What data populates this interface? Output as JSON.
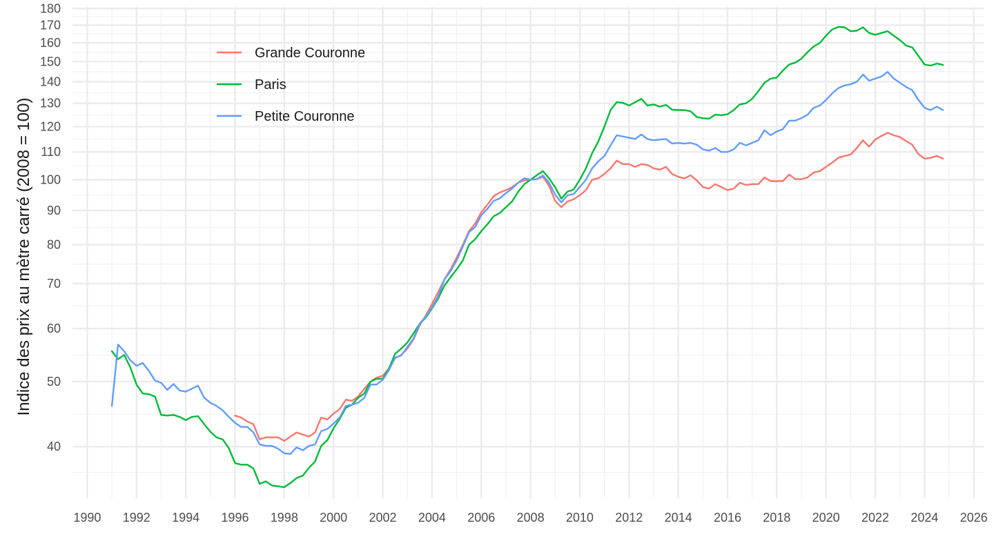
{
  "chart_data": {
    "type": "line",
    "ylabel": "Indice des prix au mètre carré (2008 = 100)",
    "xlabel": "",
    "title": "",
    "y_scale": "log",
    "xlim": [
      1989.4,
      2026.4
    ],
    "ylim": [
      33.5,
      181
    ],
    "x_ticks": [
      1990,
      1992,
      1994,
      1996,
      1998,
      2000,
      2002,
      2004,
      2006,
      2008,
      2010,
      2012,
      2014,
      2016,
      2018,
      2020,
      2022,
      2024,
      2026
    ],
    "y_ticks": [
      40,
      50,
      60,
      70,
      80,
      90,
      100,
      110,
      120,
      130,
      140,
      150,
      160,
      170,
      180
    ],
    "grid": true,
    "legend_position": "top-left",
    "series": [
      {
        "name": "Grande Couronne",
        "color": "#F8766D",
        "x": [
          1996.0,
          1996.25,
          1996.5,
          1996.75,
          1997.0,
          1997.25,
          1997.5,
          1997.75,
          1998.0,
          1998.25,
          1998.5,
          1998.75,
          1999.0,
          1999.25,
          1999.5,
          1999.75,
          2000.0,
          2000.25,
          2000.5,
          2000.75,
          2001.0,
          2001.25,
          2001.5,
          2001.75,
          2002.0,
          2002.25,
          2002.5,
          2002.75,
          2003.0,
          2003.25,
          2003.5,
          2003.75,
          2004.0,
          2004.25,
          2004.5,
          2004.75,
          2005.0,
          2005.25,
          2005.5,
          2005.75,
          2006.0,
          2006.25,
          2006.5,
          2006.75,
          2007.0,
          2007.25,
          2007.5,
          2007.75,
          2008.0,
          2008.25,
          2008.5,
          2008.75,
          2009.0,
          2009.25,
          2009.5,
          2009.75,
          2010.0,
          2010.25,
          2010.5,
          2010.75,
          2011.0,
          2011.25,
          2011.5,
          2011.75,
          2012.0,
          2012.25,
          2012.5,
          2012.75,
          2013.0,
          2013.25,
          2013.5,
          2013.75,
          2014.0,
          2014.25,
          2014.5,
          2014.75,
          2015.0,
          2015.25,
          2015.5,
          2015.75,
          2016.0,
          2016.25,
          2016.5,
          2016.75,
          2017.0,
          2017.25,
          2017.5,
          2017.75,
          2018.0,
          2018.25,
          2018.5,
          2018.75,
          2019.0,
          2019.25,
          2019.5,
          2019.75,
          2020.0,
          2020.25,
          2020.5,
          2020.75,
          2021.0,
          2021.25,
          2021.5,
          2021.75,
          2022.0,
          2022.25,
          2022.5,
          2022.75,
          2023.0,
          2023.25,
          2023.5,
          2023.75,
          2024.0,
          2024.25,
          2024.5,
          2024.75
        ],
        "y": [
          44.5,
          44.2,
          43.6,
          43.2,
          41.0,
          41.3,
          41.3,
          41.3,
          40.8,
          41.4,
          42.0,
          41.7,
          41.4,
          42.0,
          44.2,
          43.9,
          44.8,
          45.5,
          47.0,
          46.8,
          47.5,
          48.8,
          50.0,
          50.7,
          51.0,
          52.3,
          54.2,
          54.8,
          56.0,
          57.8,
          60.6,
          62.8,
          65.3,
          68.0,
          71.0,
          73.5,
          76.5,
          80.0,
          83.8,
          86.0,
          89.4,
          91.8,
          94.5,
          95.7,
          96.5,
          97.5,
          99.0,
          99.8,
          100.0,
          100.2,
          101.0,
          98.0,
          93.0,
          91.0,
          92.8,
          93.5,
          94.8,
          96.5,
          100.0,
          100.5,
          102.0,
          104.0,
          106.8,
          105.5,
          105.5,
          104.5,
          105.5,
          105.2,
          104.0,
          103.5,
          104.5,
          102.0,
          101.0,
          100.5,
          101.5,
          99.8,
          97.5,
          97.0,
          98.5,
          97.5,
          96.5,
          97.0,
          99.0,
          98.2,
          98.5,
          98.5,
          100.8,
          99.5,
          99.5,
          99.5,
          101.8,
          100.2,
          100.2,
          100.8,
          102.5,
          103.0,
          104.5,
          106.0,
          107.8,
          108.5,
          109.0,
          111.5,
          114.5,
          112.0,
          114.8,
          116.2,
          117.5,
          116.5,
          115.8,
          114.2,
          112.8,
          109.2,
          107.5,
          107.8,
          108.5,
          107.5
        ]
      },
      {
        "name": "Paris",
        "color": "#00BA38",
        "x": [
          1991.0,
          1991.25,
          1991.5,
          1991.75,
          1992.0,
          1992.25,
          1992.5,
          1992.75,
          1993.0,
          1993.25,
          1993.5,
          1993.75,
          1994.0,
          1994.25,
          1994.5,
          1994.75,
          1995.0,
          1995.25,
          1995.5,
          1995.75,
          1996.0,
          1996.25,
          1996.5,
          1996.75,
          1997.0,
          1997.25,
          1997.5,
          1997.75,
          1998.0,
          1998.25,
          1998.5,
          1998.75,
          1999.0,
          1999.25,
          1999.5,
          1999.75,
          2000.0,
          2000.25,
          2000.5,
          2000.75,
          2001.0,
          2001.25,
          2001.5,
          2001.75,
          2002.0,
          2002.25,
          2002.5,
          2002.75,
          2003.0,
          2003.25,
          2003.5,
          2003.75,
          2004.0,
          2004.25,
          2004.5,
          2004.75,
          2005.0,
          2005.25,
          2005.5,
          2005.75,
          2006.0,
          2006.25,
          2006.5,
          2006.75,
          2007.0,
          2007.25,
          2007.5,
          2007.75,
          2008.0,
          2008.25,
          2008.5,
          2008.75,
          2009.0,
          2009.25,
          2009.5,
          2009.75,
          2010.0,
          2010.25,
          2010.5,
          2010.75,
          2011.0,
          2011.25,
          2011.5,
          2011.75,
          2012.0,
          2012.25,
          2012.5,
          2012.75,
          2013.0,
          2013.25,
          2013.5,
          2013.75,
          2014.0,
          2014.25,
          2014.5,
          2014.75,
          2015.0,
          2015.25,
          2015.5,
          2015.75,
          2016.0,
          2016.25,
          2016.5,
          2016.75,
          2017.0,
          2017.25,
          2017.5,
          2017.75,
          2018.0,
          2018.25,
          2018.5,
          2018.75,
          2019.0,
          2019.25,
          2019.5,
          2019.75,
          2020.0,
          2020.25,
          2020.5,
          2020.75,
          2021.0,
          2021.25,
          2021.5,
          2021.75,
          2022.0,
          2022.25,
          2022.5,
          2022.75,
          2023.0,
          2023.25,
          2023.5,
          2023.75,
          2024.0,
          2024.25,
          2024.5,
          2024.75
        ],
        "y": [
          55.5,
          54.0,
          54.8,
          52.5,
          49.5,
          48.0,
          47.9,
          47.5,
          44.6,
          44.5,
          44.6,
          44.3,
          43.8,
          44.3,
          44.4,
          43.2,
          42.1,
          41.3,
          41.0,
          39.8,
          37.8,
          37.6,
          37.6,
          37.1,
          35.2,
          35.5,
          35.0,
          34.9,
          34.8,
          35.3,
          35.9,
          36.2,
          37.2,
          38.0,
          40.1,
          40.9,
          42.6,
          44.0,
          45.7,
          46.2,
          47.3,
          48.0,
          50.0,
          50.5,
          50.5,
          52.3,
          55.0,
          56.0,
          57.2,
          59.0,
          61.0,
          62.3,
          64.3,
          66.5,
          69.5,
          71.5,
          73.5,
          75.8,
          80.0,
          81.5,
          83.8,
          85.8,
          88.2,
          89.2,
          91.0,
          92.8,
          96.0,
          98.5,
          100.0,
          101.5,
          103.0,
          100.5,
          97.5,
          93.7,
          96.0,
          96.7,
          100.0,
          104.0,
          109.5,
          114.0,
          120.0,
          127.0,
          130.5,
          130.2,
          129.0,
          130.5,
          132.0,
          129.0,
          129.5,
          128.5,
          129.3,
          127.2,
          127.0,
          127.0,
          126.5,
          124.0,
          123.5,
          123.3,
          125.0,
          124.8,
          125.2,
          127.0,
          129.5,
          130.0,
          132.0,
          135.5,
          139.5,
          141.5,
          142.0,
          145.5,
          148.5,
          149.5,
          151.5,
          155.0,
          158.0,
          160.0,
          164.0,
          167.5,
          169.0,
          168.8,
          166.5,
          166.8,
          168.8,
          165.5,
          164.5,
          165.5,
          166.5,
          164.0,
          161.5,
          158.5,
          157.5,
          153.0,
          148.5,
          148.0,
          149.0,
          148.3
        ]
      },
      {
        "name": "Petite Couronne",
        "color": "#619CFF",
        "x": [
          1991.0,
          1991.25,
          1991.5,
          1991.75,
          1992.0,
          1992.25,
          1992.5,
          1992.75,
          1993.0,
          1993.25,
          1993.5,
          1993.75,
          1994.0,
          1994.25,
          1994.5,
          1994.75,
          1995.0,
          1995.25,
          1995.5,
          1995.75,
          1996.0,
          1996.25,
          1996.5,
          1996.75,
          1997.0,
          1997.25,
          1997.5,
          1997.75,
          1998.0,
          1998.25,
          1998.5,
          1998.75,
          1999.0,
          1999.25,
          1999.5,
          1999.75,
          2000.0,
          2000.25,
          2000.5,
          2000.75,
          2001.0,
          2001.25,
          2001.5,
          2001.75,
          2002.0,
          2002.25,
          2002.5,
          2002.75,
          2003.0,
          2003.25,
          2003.5,
          2003.75,
          2004.0,
          2004.25,
          2004.5,
          2004.75,
          2005.0,
          2005.25,
          2005.5,
          2005.75,
          2006.0,
          2006.25,
          2006.5,
          2006.75,
          2007.0,
          2007.25,
          2007.5,
          2007.75,
          2008.0,
          2008.25,
          2008.5,
          2008.75,
          2009.0,
          2009.25,
          2009.5,
          2009.75,
          2010.0,
          2010.25,
          2010.5,
          2010.75,
          2011.0,
          2011.25,
          2011.5,
          2011.75,
          2012.0,
          2012.25,
          2012.5,
          2012.75,
          2013.0,
          2013.25,
          2013.5,
          2013.75,
          2014.0,
          2014.25,
          2014.5,
          2014.75,
          2015.0,
          2015.25,
          2015.5,
          2015.75,
          2016.0,
          2016.25,
          2016.5,
          2016.75,
          2017.0,
          2017.25,
          2017.5,
          2017.75,
          2018.0,
          2018.25,
          2018.5,
          2018.75,
          2019.0,
          2019.25,
          2019.5,
          2019.75,
          2020.0,
          2020.25,
          2020.5,
          2020.75,
          2021.0,
          2021.25,
          2021.5,
          2021.75,
          2022.0,
          2022.25,
          2022.5,
          2022.75,
          2023.0,
          2023.25,
          2023.5,
          2023.75,
          2024.0,
          2024.25,
          2024.5,
          2024.75
        ],
        "y": [
          46.0,
          56.8,
          55.5,
          53.8,
          52.8,
          53.3,
          51.9,
          50.2,
          49.8,
          48.6,
          49.6,
          48.5,
          48.3,
          48.8,
          49.3,
          47.3,
          46.5,
          46.0,
          45.3,
          44.3,
          43.4,
          42.8,
          42.8,
          42.0,
          40.3,
          40.1,
          40.1,
          39.7,
          39.1,
          39.0,
          39.9,
          39.5,
          40.1,
          40.3,
          42.2,
          42.5,
          43.3,
          44.2,
          46.0,
          46.2,
          46.5,
          47.3,
          49.5,
          49.5,
          50.3,
          52.0,
          54.3,
          54.7,
          56.3,
          58.0,
          61.0,
          62.5,
          64.5,
          67.0,
          71.0,
          73.0,
          75.8,
          79.5,
          83.5,
          85.0,
          88.5,
          90.5,
          93.0,
          93.8,
          95.5,
          97.0,
          99.0,
          100.5,
          100.0,
          100.2,
          101.5,
          99.0,
          95.0,
          92.5,
          94.8,
          95.2,
          97.5,
          100.0,
          104.0,
          106.5,
          108.5,
          112.5,
          116.5,
          116.0,
          115.5,
          115.0,
          116.8,
          115.0,
          114.5,
          114.8,
          115.0,
          113.2,
          113.5,
          113.2,
          113.5,
          112.8,
          111.0,
          110.5,
          111.5,
          110.0,
          110.0,
          111.0,
          113.5,
          112.5,
          113.5,
          114.5,
          118.5,
          116.5,
          118.0,
          119.0,
          122.5,
          122.5,
          123.5,
          125.0,
          128.0,
          129.0,
          131.5,
          134.5,
          137.0,
          138.2,
          138.8,
          140.0,
          143.5,
          140.5,
          141.5,
          142.5,
          144.8,
          141.5,
          139.5,
          137.5,
          136.0,
          131.5,
          128.0,
          127.0,
          128.5,
          127.0
        ]
      }
    ]
  }
}
